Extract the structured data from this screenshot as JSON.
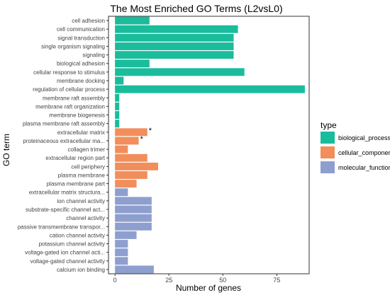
{
  "chart_data": {
    "type": "bar",
    "orientation": "horizontal",
    "title": "The Most Enriched GO Terms (L2vsL0)",
    "xlabel": "Number of genes",
    "ylabel": "GO term",
    "xlim": [
      -3,
      90
    ],
    "xticks": [
      0,
      25,
      50,
      75
    ],
    "grid": false,
    "legend": {
      "title": "type",
      "position": "right",
      "entries": [
        {
          "name": "biological_process",
          "color": "#1abc9c"
        },
        {
          "name": "cellular_component",
          "color": "#f28e5c"
        },
        {
          "name": "molecular_function",
          "color": "#8e9fcf"
        }
      ]
    },
    "categories": [
      "cell adhesion",
      "cell communication",
      "signal transduction",
      "single organism signaling",
      "signaling",
      "biological adhesion",
      "cellular response to stimulus",
      "membrane docking",
      "regulation of cellular process",
      "membrane raft assembly",
      "membrane raft organization",
      "membrane biogenesis",
      "plasma membrane raft assembly",
      "extracellular matrix",
      "proteinaceous extracellular ma...",
      "collagen trimer",
      "extracellular region part",
      "cell periphery",
      "plasma membrane",
      "plasma membrane part",
      "extracellular matrix structura...",
      "ion channel activity",
      "substrate-specific channel act...",
      "channel activity",
      "passive transmembrane transpor...",
      "cation channel activity",
      "potassium channel activity",
      "voltage-gated ion channel acti...",
      "voltage-gated channel activity",
      "calcium ion binding"
    ],
    "values": [
      16,
      57,
      55,
      55,
      55,
      16,
      60,
      4,
      88,
      2,
      2,
      2,
      2,
      15,
      11,
      6,
      15,
      20,
      15,
      10,
      6,
      17,
      17,
      17,
      17,
      10,
      6,
      6,
      6,
      18
    ],
    "types": [
      "biological_process",
      "biological_process",
      "biological_process",
      "biological_process",
      "biological_process",
      "biological_process",
      "biological_process",
      "biological_process",
      "biological_process",
      "biological_process",
      "biological_process",
      "biological_process",
      "biological_process",
      "cellular_component",
      "cellular_component",
      "cellular_component",
      "cellular_component",
      "cellular_component",
      "cellular_component",
      "cellular_component",
      "molecular_function",
      "molecular_function",
      "molecular_function",
      "molecular_function",
      "molecular_function",
      "molecular_function",
      "molecular_function",
      "molecular_function",
      "molecular_function",
      "molecular_function"
    ],
    "annotations": [
      {
        "category": "extracellular matrix",
        "text": "*"
      },
      {
        "category": "proteinaceous extracellular ma...",
        "text": "*"
      }
    ]
  }
}
